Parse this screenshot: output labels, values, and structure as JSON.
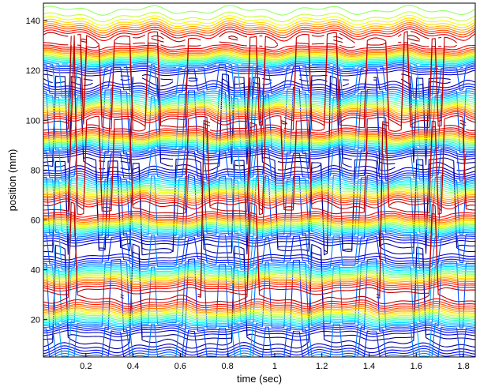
{
  "chart_data": {
    "type": "contour",
    "title": "",
    "xlabel": "time (sec)",
    "ylabel": "position (mm)",
    "xlim": [
      0.02,
      1.85
    ],
    "ylim": [
      5,
      147
    ],
    "xticks": [
      0.2,
      0.4,
      0.6,
      0.8,
      1,
      1.2,
      1.4,
      1.6,
      1.8
    ],
    "xtick_labels": [
      "0.2",
      "0.4",
      "0.6",
      "0.8",
      "1",
      "1.2",
      "1.4",
      "1.6",
      "1.8"
    ],
    "yticks": [
      20,
      40,
      60,
      80,
      100,
      120,
      140
    ],
    "ytick_labels": [
      "20",
      "40",
      "60",
      "80",
      "100",
      "120",
      "140"
    ],
    "colormap": "jet",
    "grid": false,
    "bands": [
      {
        "kind": "high",
        "center_mm": 131,
        "half_width_mm": 5
      },
      {
        "kind": "low",
        "center_mm": 117,
        "half_width_mm": 6
      },
      {
        "kind": "high",
        "center_mm": 98,
        "half_width_mm": 5
      },
      {
        "kind": "low",
        "center_mm": 83,
        "half_width_mm": 6
      },
      {
        "kind": "high",
        "center_mm": 64,
        "half_width_mm": 5
      },
      {
        "kind": "low",
        "center_mm": 48,
        "half_width_mm": 7
      },
      {
        "kind": "high",
        "center_mm": 30,
        "half_width_mm": 6
      },
      {
        "kind": "low",
        "center_mm": 12,
        "half_width_mm": 6
      }
    ]
  }
}
